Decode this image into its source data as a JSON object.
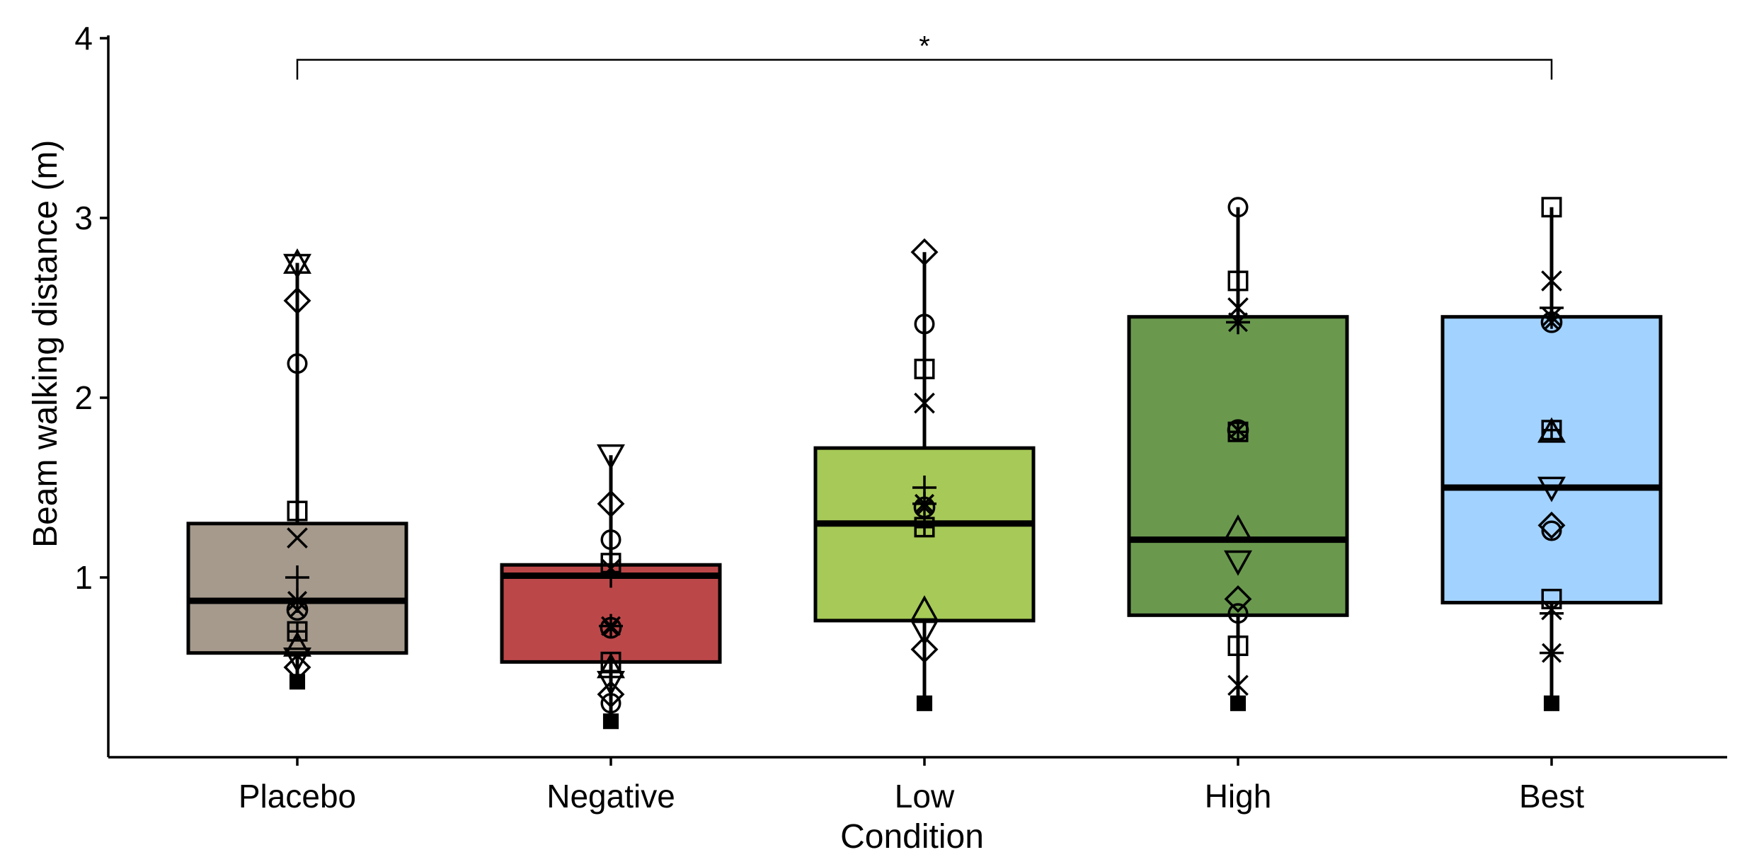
{
  "chart_data": {
    "type": "box",
    "title": "",
    "xlabel": "Condition",
    "ylabel": "Beam walking distance (m)",
    "ylim": [
      0,
      4
    ],
    "yticks": [
      1,
      2,
      3,
      4
    ],
    "categories": [
      "Placebo",
      "Negative",
      "Low",
      "High",
      "Best"
    ],
    "colors": [
      "#A59A8C",
      "#BC4749",
      "#A7C957",
      "#6A994E",
      "#A2D2FF"
    ],
    "boxes": [
      {
        "category": "Placebo",
        "q1": 0.58,
        "median": 0.87,
        "q3": 1.3,
        "whisker_low": 0.4,
        "whisker_high": 2.75
      },
      {
        "category": "Negative",
        "q1": 0.53,
        "median": 1.01,
        "q3": 1.07,
        "whisker_low": 0.2,
        "whisker_high": 1.68
      },
      {
        "category": "Low",
        "q1": 0.76,
        "median": 1.3,
        "q3": 1.72,
        "whisker_low": 0.3,
        "whisker_high": 2.81
      },
      {
        "category": "High",
        "q1": 0.79,
        "median": 1.21,
        "q3": 2.45,
        "whisker_low": 0.3,
        "whisker_high": 3.06
      },
      {
        "category": "Best",
        "q1": 0.86,
        "median": 1.5,
        "q3": 2.45,
        "whisker_low": 0.3,
        "whisker_high": 3.06
      }
    ],
    "points": [
      {
        "category": "Placebo",
        "values": [
          2.75,
          2.74,
          2.54,
          2.19,
          1.37,
          1.22,
          1.0,
          0.87,
          0.82,
          0.7,
          0.62,
          0.55,
          0.5,
          0.42
        ]
      },
      {
        "category": "Negative",
        "values": [
          1.68,
          1.41,
          1.21,
          1.08,
          1.05,
          1.01,
          0.73,
          0.72,
          0.53,
          0.5,
          0.42,
          0.35,
          0.3,
          0.2
        ]
      },
      {
        "category": "Low",
        "values": [
          2.81,
          2.41,
          2.16,
          1.97,
          1.5,
          1.41,
          1.39,
          1.28,
          0.82,
          0.7,
          0.6,
          0.3
        ]
      },
      {
        "category": "High",
        "values": [
          3.06,
          2.65,
          2.5,
          2.45,
          2.42,
          1.82,
          1.81,
          1.27,
          1.09,
          0.88,
          0.8,
          0.62,
          0.4,
          0.3
        ]
      },
      {
        "category": "Best",
        "values": [
          3.06,
          2.65,
          2.5,
          2.45,
          2.42,
          1.82,
          1.81,
          1.5,
          1.29,
          1.26,
          0.88,
          0.82,
          0.8,
          0.58,
          0.3
        ]
      }
    ],
    "significance": [
      {
        "from": "Placebo",
        "to": "Best",
        "label": "*",
        "y": 3.88
      }
    ],
    "grid": false,
    "legend": "none"
  }
}
